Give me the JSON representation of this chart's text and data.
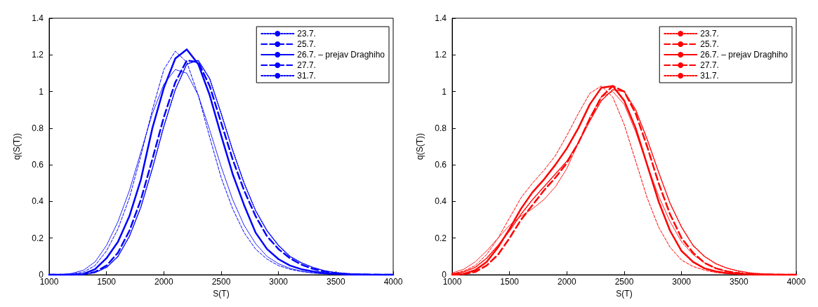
{
  "chart_data": [
    {
      "type": "line",
      "xlabel": "S(T)",
      "ylabel": "q(S(T))",
      "xlim": [
        1000,
        4000
      ],
      "xticks": [
        1000,
        1500,
        2000,
        2500,
        3000,
        3500,
        4000
      ],
      "ylim": [
        0,
        1.4
      ],
      "yticks": [
        0,
        0.2,
        0.4,
        0.6,
        0.8,
        1,
        1.2,
        1.4
      ],
      "grid": false,
      "legend": "top right",
      "marker": "none",
      "x": [
        1000,
        1100,
        1200,
        1300,
        1400,
        1500,
        1600,
        1700,
        1800,
        1900,
        2000,
        2100,
        2200,
        2300,
        2400,
        2500,
        2600,
        2700,
        2800,
        2900,
        3000,
        3100,
        3200,
        3300,
        3400,
        3500,
        3600,
        3700,
        3800,
        3900,
        4000
      ],
      "series": [
        {
          "name": "23.7.",
          "color": "#0000ff",
          "line_style": "dotted",
          "values": [
            0,
            0,
            0.008,
            0.025,
            0.07,
            0.16,
            0.29,
            0.46,
            0.67,
            0.88,
            1.04,
            1.12,
            1.1,
            0.98,
            0.79,
            0.59,
            0.41,
            0.27,
            0.17,
            0.1,
            0.06,
            0.035,
            0.02,
            0.01,
            0.005,
            0.002,
            0,
            0,
            0,
            0,
            0
          ]
        },
        {
          "name": "25.7.",
          "color": "#0000ff",
          "line_style": "dashed",
          "values": [
            0,
            0,
            0.005,
            0.015,
            0.05,
            0.13,
            0.25,
            0.42,
            0.65,
            0.9,
            1.12,
            1.22,
            1.16,
            0.98,
            0.75,
            0.53,
            0.36,
            0.23,
            0.14,
            0.085,
            0.05,
            0.03,
            0.017,
            0.01,
            0.005,
            0.002,
            0,
            0,
            0,
            0,
            0
          ]
        },
        {
          "name": "26.7. – prejav Draghiho",
          "color": "#0000ff",
          "line_style": "solid",
          "values": [
            0,
            0,
            0,
            0.005,
            0.03,
            0.09,
            0.18,
            0.32,
            0.52,
            0.8,
            1.02,
            1.18,
            1.23,
            1.15,
            0.98,
            0.76,
            0.55,
            0.38,
            0.23,
            0.14,
            0.085,
            0.05,
            0.03,
            0.018,
            0.01,
            0.005,
            0.002,
            0.001,
            0,
            0,
            0
          ]
        },
        {
          "name": "27.7.",
          "color": "#0000ff",
          "line_style": "dashed",
          "values": [
            0,
            0,
            0,
            0.003,
            0.015,
            0.05,
            0.12,
            0.24,
            0.41,
            0.63,
            0.86,
            1.05,
            1.17,
            1.16,
            1.03,
            0.83,
            0.63,
            0.46,
            0.32,
            0.21,
            0.14,
            0.09,
            0.055,
            0.032,
            0.018,
            0.009,
            0.004,
            0.002,
            0.001,
            0,
            0
          ]
        },
        {
          "name": "31.7.",
          "color": "#0000ff",
          "line_style": "dotted",
          "values": [
            0,
            0,
            0,
            0.002,
            0.012,
            0.04,
            0.1,
            0.21,
            0.37,
            0.58,
            0.81,
            1.01,
            1.15,
            1.17,
            1.07,
            0.88,
            0.68,
            0.5,
            0.35,
            0.24,
            0.16,
            0.1,
            0.065,
            0.04,
            0.022,
            0.012,
            0.006,
            0.003,
            0.001,
            0,
            0
          ]
        }
      ]
    },
    {
      "type": "line",
      "xlabel": "S(T)",
      "ylabel": "q(S(T))",
      "xlim": [
        1000,
        4000
      ],
      "xticks": [
        1000,
        1500,
        2000,
        2500,
        3000,
        3500,
        4000
      ],
      "ylim": [
        0,
        1.4
      ],
      "yticks": [
        0,
        0.2,
        0.4,
        0.6,
        0.8,
        1,
        1.2,
        1.4
      ],
      "grid": false,
      "legend": "top right",
      "marker": "none",
      "x": [
        1000,
        1100,
        1200,
        1300,
        1400,
        1500,
        1600,
        1700,
        1800,
        1900,
        2000,
        2100,
        2200,
        2300,
        2400,
        2500,
        2600,
        2700,
        2800,
        2900,
        3000,
        3100,
        3200,
        3300,
        3400,
        3500,
        3600,
        3700,
        3800,
        3900,
        4000
      ],
      "series": [
        {
          "name": "23.7.",
          "color": "#ff0000",
          "line_style": "dotted",
          "values": [
            0.01,
            0.03,
            0.07,
            0.13,
            0.2,
            0.27,
            0.32,
            0.36,
            0.41,
            0.48,
            0.58,
            0.72,
            0.86,
            0.97,
            1.0,
            0.93,
            0.78,
            0.6,
            0.43,
            0.29,
            0.18,
            0.11,
            0.065,
            0.035,
            0.018,
            0.009,
            0.004,
            0.002,
            0.001,
            0,
            0
          ]
        },
        {
          "name": "25.7.",
          "color": "#ff0000",
          "line_style": "dashed",
          "values": [
            0.005,
            0.02,
            0.05,
            0.11,
            0.2,
            0.31,
            0.42,
            0.5,
            0.57,
            0.65,
            0.76,
            0.88,
            0.99,
            1.03,
            0.97,
            0.82,
            0.62,
            0.42,
            0.26,
            0.15,
            0.08,
            0.045,
            0.025,
            0.012,
            0.006,
            0.003,
            0.001,
            0,
            0,
            0,
            0
          ]
        },
        {
          "name": "26.7. – prejav Draghiho",
          "color": "#ff0000",
          "line_style": "solid",
          "values": [
            0,
            0.005,
            0.025,
            0.07,
            0.15,
            0.25,
            0.36,
            0.45,
            0.52,
            0.6,
            0.69,
            0.8,
            0.93,
            1.02,
            1.03,
            0.95,
            0.8,
            0.6,
            0.4,
            0.24,
            0.13,
            0.07,
            0.035,
            0.018,
            0.009,
            0.004,
            0.002,
            0.001,
            0,
            0,
            0
          ]
        },
        {
          "name": "27.7.",
          "color": "#ff0000",
          "line_style": "dashed",
          "values": [
            0,
            0.003,
            0.015,
            0.05,
            0.11,
            0.2,
            0.3,
            0.38,
            0.46,
            0.53,
            0.61,
            0.72,
            0.85,
            0.97,
            1.03,
            1.0,
            0.88,
            0.7,
            0.5,
            0.33,
            0.2,
            0.12,
            0.065,
            0.035,
            0.018,
            0.009,
            0.004,
            0.002,
            0.001,
            0,
            0
          ]
        },
        {
          "name": "31.7.",
          "color": "#ff0000",
          "line_style": "dotted",
          "values": [
            0.005,
            0.015,
            0.04,
            0.09,
            0.16,
            0.24,
            0.33,
            0.41,
            0.48,
            0.55,
            0.62,
            0.72,
            0.84,
            0.95,
            1.01,
            1.0,
            0.9,
            0.74,
            0.56,
            0.39,
            0.26,
            0.16,
            0.1,
            0.06,
            0.035,
            0.02,
            0.01,
            0.005,
            0.002,
            0.001,
            0
          ]
        }
      ]
    }
  ]
}
